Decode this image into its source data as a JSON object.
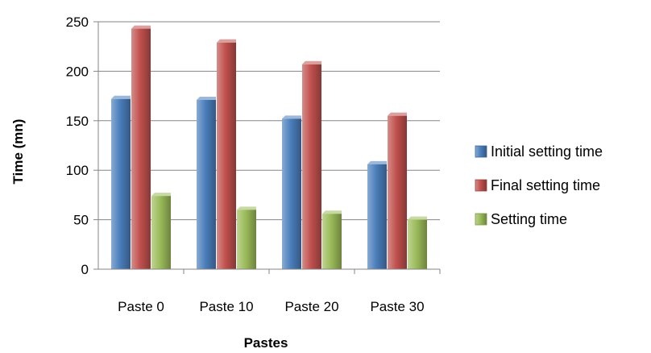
{
  "chart_data": {
    "type": "bar",
    "categories": [
      "Paste 0",
      "Paste 10",
      "Paste 20",
      "Paste 30"
    ],
    "series": [
      {
        "name": "Initial setting time",
        "values": [
          172,
          171,
          152,
          106
        ],
        "color": "#4a7ebb"
      },
      {
        "name": "Final setting time",
        "values": [
          243,
          229,
          207,
          155
        ],
        "color": "#c0504d"
      },
      {
        "name": "Setting time",
        "values": [
          74,
          60,
          56,
          50
        ],
        "color": "#9bbb59"
      }
    ],
    "title": "",
    "xlabel": "Pastes",
    "ylabel": "Time (mn)",
    "ylim": [
      0,
      250
    ],
    "yticks": [
      0,
      50,
      100,
      150,
      200,
      250
    ],
    "grid": true,
    "legend": "right"
  }
}
